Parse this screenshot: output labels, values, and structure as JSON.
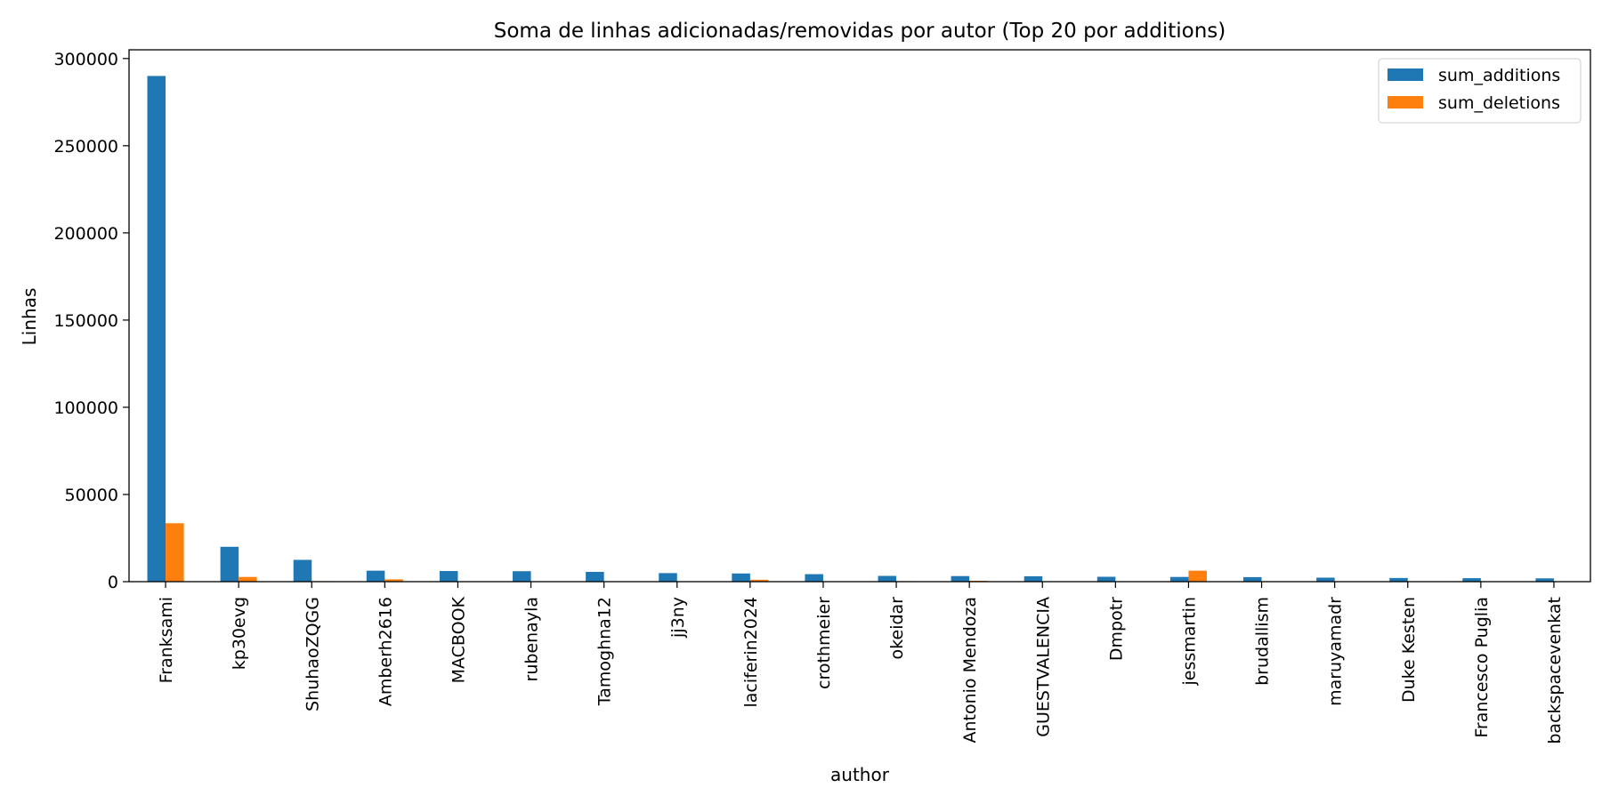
{
  "chart_data": {
    "type": "bar",
    "title": "Soma de linhas adicionadas/removidas por autor (Top 20 por additions)",
    "xlabel": "author",
    "ylabel": "Linhas",
    "ylim": [
      0,
      305000
    ],
    "yticks": [
      0,
      50000,
      100000,
      150000,
      200000,
      250000,
      300000
    ],
    "grid": false,
    "legend_position": "top-right",
    "categories": [
      "Franksami",
      "kp30evg",
      "ShuhaoZQGG",
      "Amberh2616",
      "MACBOOK",
      "rubenayla",
      "Tamoghna12",
      "jj3ny",
      "laciferin2024",
      "crothmeier",
      "okeidar",
      "Antonio Mendoza",
      "GUESTVALENCIA",
      "Dmpotr",
      "jessmartin",
      "brudallism",
      "maruyamadr",
      "Duke Kesten",
      "Francesco Puglia",
      "backspacevenkat"
    ],
    "series": [
      {
        "name": "sum_additions",
        "color": "#1f77b4",
        "values": [
          290000,
          20000,
          12500,
          6300,
          6100,
          6000,
          5600,
          4900,
          4700,
          4300,
          3300,
          3200,
          3100,
          2800,
          2700,
          2600,
          2300,
          2100,
          2000,
          1900
        ]
      },
      {
        "name": "sum_deletions",
        "color": "#ff7f0e",
        "values": [
          33500,
          2700,
          300,
          1300,
          200,
          100,
          200,
          100,
          1100,
          100,
          300,
          500,
          100,
          100,
          6300,
          100,
          100,
          100,
          100,
          100
        ]
      }
    ]
  }
}
